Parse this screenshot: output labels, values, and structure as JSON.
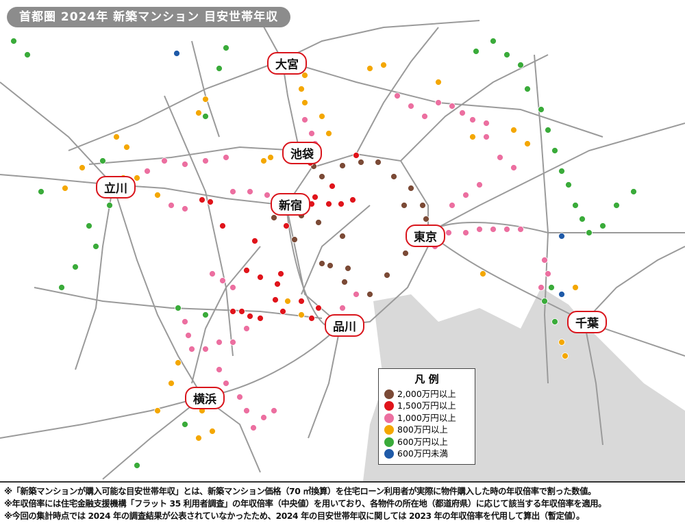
{
  "title": "首都圏 2024年 新築マンション 目安世帯年収",
  "cities": [
    {
      "name": "大宮"
    },
    {
      "name": "池袋"
    },
    {
      "name": "立川"
    },
    {
      "name": "新宿"
    },
    {
      "name": "東京"
    },
    {
      "name": "品川"
    },
    {
      "name": "千葉"
    },
    {
      "name": "横浜"
    }
  ],
  "legend": {
    "title": "凡 例",
    "items": [
      {
        "label": "2,000万円以上",
        "color": "#7b4a36"
      },
      {
        "label": "1,500万円以上",
        "color": "#e0141b"
      },
      {
        "label": "1,000万円以上",
        "color": "#ec6fa0"
      },
      {
        "label": "800万円以上",
        "color": "#f4a700"
      },
      {
        "label": "600万円以上",
        "color": "#3aab3a"
      },
      {
        "label": "600万円未満",
        "color": "#1f5aa8"
      }
    ]
  },
  "colors": {
    "sea": "#d9d9d9",
    "rail": "#9a9a9a",
    "city_border": "#d9141b",
    "title_bg": "#8c8c8c"
  },
  "notes": [
    "※「新築マンションが購入可能な目安世帯年収」とは、新築マンション価格（70 ㎡換算）を住宅ローン利用者が実際に物件購入した時の年収倍率で割った数値。",
    "※年収倍率には住宅金融支援機構「フラット 35 利用者調査」の年収倍率（中央値）を用いており、各物件の所在地（都道府県）に応じて該当する年収倍率を適用。",
    "※今回の集計時点では 2024 年の調査結果が公表されていなかったため、2024 年の目安世帯年収に関しては 2023 年の年収倍率を代用して算出（暫定値）。"
  ]
}
